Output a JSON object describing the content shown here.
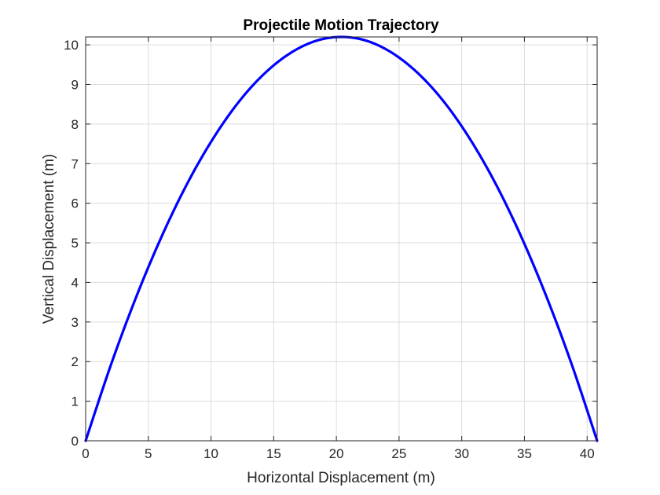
{
  "chart_data": {
    "type": "line",
    "title": "Projectile Motion Trajectory",
    "xlabel": "Horizontal Displacement (m)",
    "ylabel": "Vertical Displacement (m)",
    "xlim": [
      0,
      40.8
    ],
    "ylim": [
      0,
      10.2
    ],
    "xticks": [
      0,
      5,
      10,
      15,
      20,
      25,
      30,
      35,
      40
    ],
    "yticks": [
      0,
      1,
      2,
      3,
      4,
      5,
      6,
      7,
      8,
      9,
      10
    ],
    "grid": true,
    "series": [
      {
        "color": "#0000ff",
        "x": [
          0,
          2.04,
          4.08,
          6.12,
          8.16,
          10.2,
          12.24,
          14.28,
          16.32,
          18.36,
          20.4,
          22.44,
          24.48,
          26.52,
          28.56,
          30.6,
          32.64,
          34.68,
          36.72,
          38.76,
          40.8
        ],
        "y": [
          0,
          1.94,
          3.67,
          5.2,
          6.53,
          7.65,
          8.57,
          9.28,
          9.79,
          10.1,
          10.2,
          10.1,
          9.79,
          9.28,
          8.57,
          7.65,
          6.53,
          5.2,
          3.67,
          1.94,
          0
        ]
      }
    ]
  }
}
